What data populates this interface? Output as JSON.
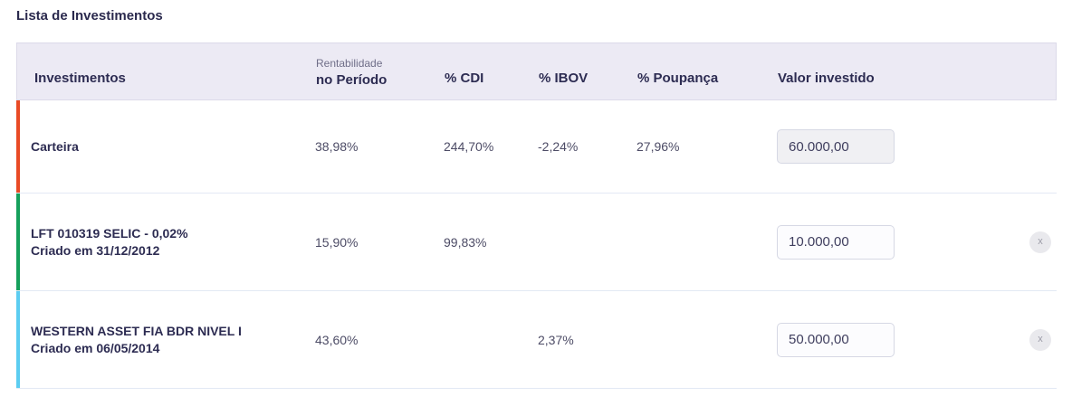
{
  "page": {
    "title": "Lista de Investimentos"
  },
  "table": {
    "columns": {
      "investments": "Investimentos",
      "profit_line1": "Rentabilidade",
      "profit_line2": "no Período",
      "cdi": "% CDI",
      "ibov": "% IBOV",
      "poupanca": "% Poupança",
      "invested": "Valor investido"
    },
    "remove_button_label": "x",
    "rows": [
      {
        "name": "Carteira",
        "subtitle": "",
        "rentabilidade": "38,98%",
        "cdi": "244,70%",
        "ibov": "-2,24%",
        "poupanca": "27,96%",
        "valor_investido": "60.000,00",
        "accent_color": "#E94A26"
      },
      {
        "name": "LFT 010319 SELIC - 0,02%",
        "subtitle": "Criado em 31/12/2012",
        "rentabilidade": "15,90%",
        "cdi": "99,83%",
        "ibov": "",
        "poupanca": "",
        "valor_investido": "10.000,00",
        "accent_color": "#16A05C"
      },
      {
        "name": "WESTERN ASSET FIA BDR NIVEL I",
        "subtitle": "Criado em 06/05/2014",
        "rentabilidade": "43,60%",
        "cdi": "",
        "ibov": "2,37%",
        "poupanca": "",
        "valor_investido": "50.000,00",
        "accent_color": "#5CCDF1"
      }
    ]
  },
  "colors": {
    "header_background": "#ECEAF4",
    "header_border": "#DCDAE9",
    "row_separator": "#E3E9F4",
    "text_primary": "#2D2C52",
    "text_secondary": "#4D4C66",
    "accent_carteira": "#E94A26",
    "accent_lft": "#16A05C",
    "accent_western": "#5CCDF1"
  }
}
